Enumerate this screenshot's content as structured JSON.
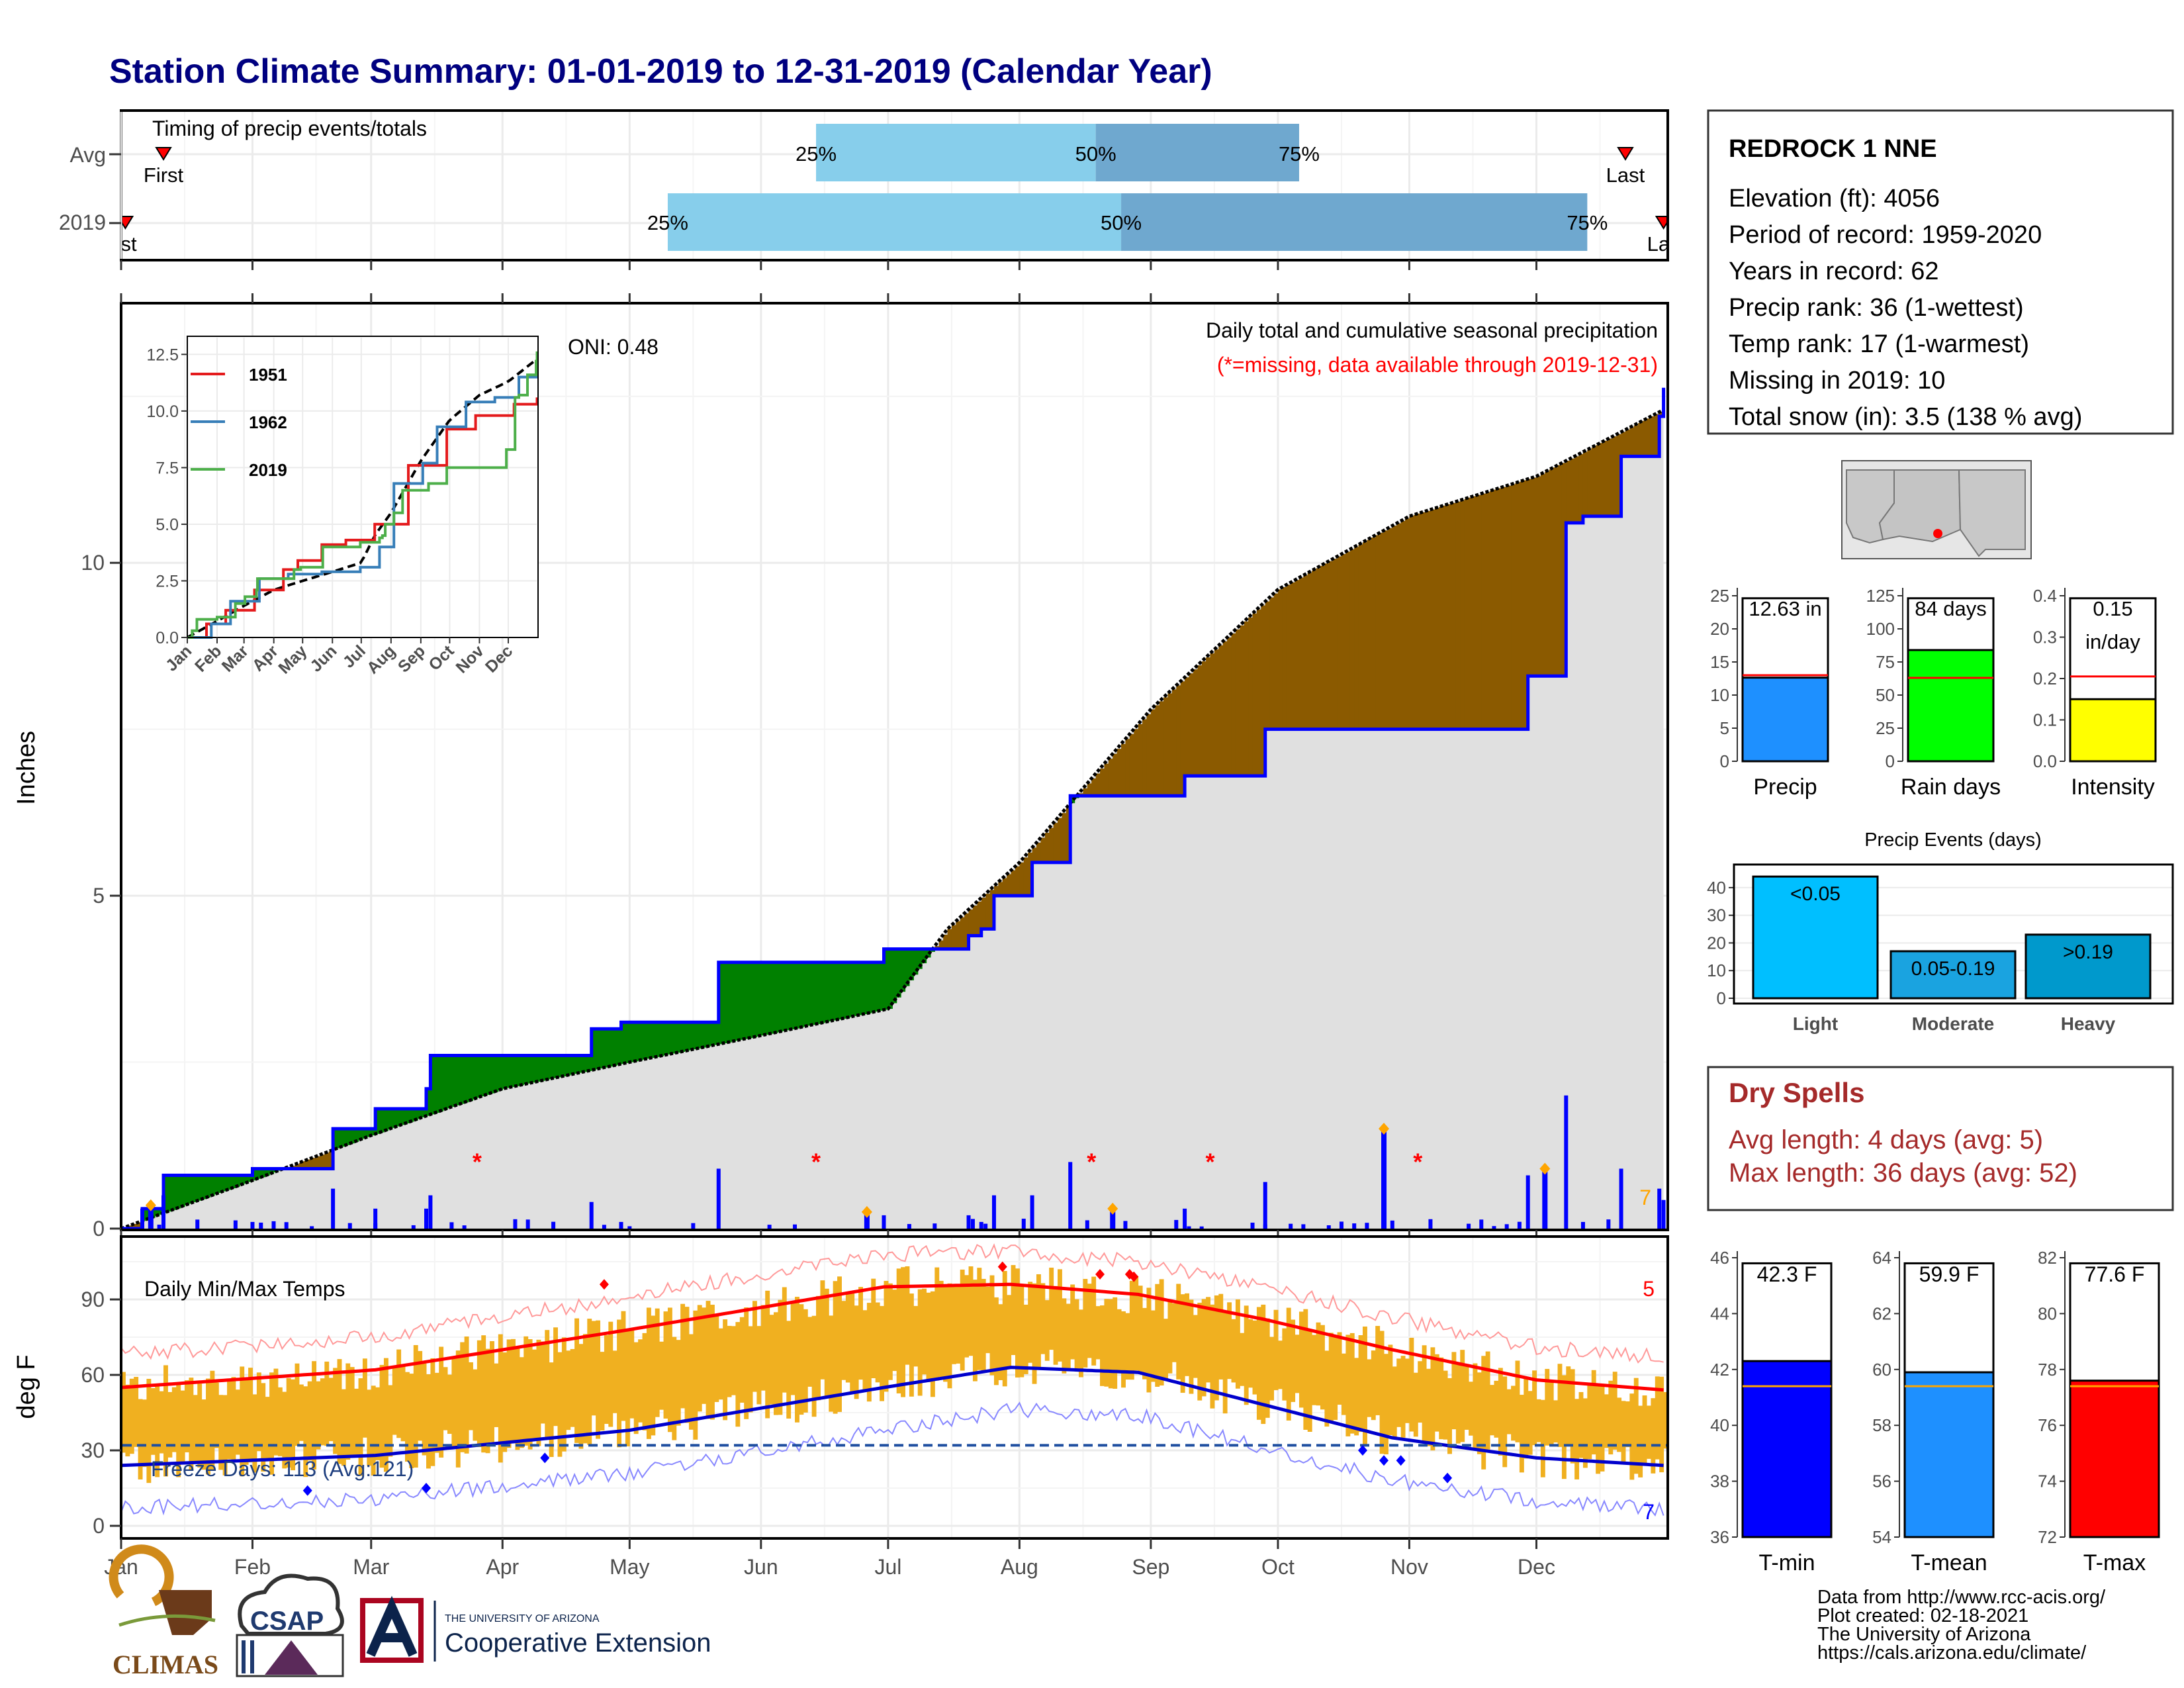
{
  "title": "Station Climate Summary: 01-01-2019 to 12-31-2019 (Calendar Year)",
  "months": [
    "Jan",
    "Feb",
    "Mar",
    "Apr",
    "May",
    "Jun",
    "Jul",
    "Aug",
    "Sep",
    "Oct",
    "Nov",
    "Dec"
  ],
  "colors": {
    "title": "#000080",
    "precip_bar": "#0000ff",
    "above_fill": "#008000",
    "below_fill": "#8b5a00",
    "normal_fill": "#e0e0e0",
    "temp_bar": "#f0b020",
    "tmax": "#ff0000",
    "tmin": "#0000cc",
    "timing_light": "#87ceeb",
    "timing_dark": "#6fa8cf",
    "dry_spells": "#a52a2a"
  },
  "timing": {
    "label": "Timing of precip events/totals",
    "rows": [
      {
        "name": "Avg",
        "first_day": 10,
        "q25": 164,
        "q50": 230,
        "q75": 278,
        "last_day": 355
      },
      {
        "name": "2019",
        "first_day": 1,
        "q25": 129,
        "q50": 236,
        "q75": 346,
        "last_day": 364
      }
    ],
    "labels": {
      "first": "First",
      "first_2019": "rst",
      "last": "Last",
      "last_2019": "Las",
      "p25": "25%",
      "p50": "50%",
      "p75": "75%"
    }
  },
  "precip_panel": {
    "ylabel": "Inches",
    "yticks": [
      "0",
      "5",
      "10"
    ],
    "heading": "Daily total and cumulative seasonal precipitation",
    "missing_note": "(*=missing, data available through 2019-12-31)",
    "oni": "ONI: 0.48",
    "corner_count": "7"
  },
  "inset": {
    "yticks": [
      "0.0",
      "2.5",
      "5.0",
      "7.5",
      "10.0",
      "12.5"
    ],
    "xticks": [
      "Jan",
      "Feb",
      "Mar",
      "Apr",
      "May",
      "Jun",
      "Jul",
      "Aug",
      "Sep",
      "Oct",
      "Nov",
      "Dec"
    ],
    "legend": [
      "1951",
      "1962",
      "2019"
    ]
  },
  "temp_panel": {
    "label": "Daily Min/Max Temps",
    "ylabel": "deg F",
    "yticks": [
      "0",
      "30",
      "60",
      "90"
    ],
    "freeze": "Freeze Days: 113 (Avg:121)",
    "count_hot": "5",
    "count_cold": "7"
  },
  "station": {
    "name": "REDROCK 1 NNE",
    "lines": [
      "Elevation (ft): 4056",
      "Period of record: 1959-2020",
      "Years in record: 62",
      "Precip rank: 36 (1-wettest)",
      "Temp rank: 17 (1-warmest)",
      "Missing in 2019: 10",
      "Total snow (in): 3.5 (138 % avg)"
    ]
  },
  "mini_precip": [
    {
      "label": "Precip",
      "value_text": "12.63 in",
      "value": 12.63,
      "avg": 13.0,
      "max": 25,
      "ticks": [
        "0",
        "5",
        "10",
        "15",
        "20",
        "25"
      ],
      "color": "#1e90ff"
    },
    {
      "label": "Rain days",
      "value_text": "84 days",
      "value": 84,
      "avg": 63,
      "max": 125,
      "ticks": [
        "0",
        "25",
        "50",
        "75",
        "100",
        "125"
      ],
      "color": "#00ff00"
    },
    {
      "label": "Intensity",
      "value_text": "0.15",
      "value_text2": "in/day",
      "value": 0.15,
      "avg": 0.205,
      "max": 0.4,
      "ticks": [
        "0.0",
        "0.1",
        "0.2",
        "0.3",
        "0.4"
      ],
      "color": "#ffff00"
    }
  ],
  "events": {
    "title": "Precip Events (days)",
    "ticks": [
      "0",
      "10",
      "20",
      "30",
      "40"
    ],
    "bars": [
      {
        "name": "Light",
        "label": "<0.05",
        "value": 44,
        "color": "#00bfff"
      },
      {
        "name": "Moderate",
        "label": "0.05-0.19",
        "value": 17,
        "color": "#1aa3e0"
      },
      {
        "name": "Heavy",
        "label": ">0.19",
        "value": 23,
        "color": "#0099cc"
      }
    ]
  },
  "dry_spells": {
    "title": "Dry Spells",
    "avg": "Avg length: 4 days (avg: 5)",
    "max": "Max length: 36 days (avg: 52)"
  },
  "temps_summary": [
    {
      "label": "T-min",
      "value_text": "42.3 F",
      "value": 42.3,
      "avg": 41.4,
      "min": 36,
      "max": 46,
      "ticks": [
        "36",
        "38",
        "40",
        "42",
        "44",
        "46"
      ],
      "color": "#0000ff"
    },
    {
      "label": "T-mean",
      "value_text": "59.9 F",
      "value": 59.9,
      "avg": 59.4,
      "min": 54,
      "max": 64,
      "ticks": [
        "54",
        "56",
        "58",
        "60",
        "62",
        "64"
      ],
      "color": "#1e90ff"
    },
    {
      "label": "T-max",
      "value_text": "77.6 F",
      "value": 77.6,
      "avg": 77.4,
      "min": 72,
      "max": 82,
      "ticks": [
        "72",
        "74",
        "76",
        "78",
        "80",
        "82"
      ],
      "color": "#ff0000"
    }
  ],
  "logos": {
    "climas": "CLIMAS",
    "csap": "CSAP",
    "ua_small": "THE UNIVERSITY OF ARIZONA",
    "ua_big": "Cooperative Extension"
  },
  "credits": [
    "Data from http://www.rcc-acis.org/",
    "Plot created: 02-18-2021",
    "The University of Arizona",
    "https://cals.arizona.edu/climate/"
  ],
  "chart_data": {
    "type": "area",
    "title": "Daily total and cumulative seasonal precipitation",
    "ylabel": "Inches",
    "ylim": [
      0,
      13.9
    ],
    "cumulative_observed_2019": [
      [
        0,
        0
      ],
      [
        5,
        0.3
      ],
      [
        10,
        0.8
      ],
      [
        31,
        0.9
      ],
      [
        50,
        1.5
      ],
      [
        60,
        1.8
      ],
      [
        72,
        2.1
      ],
      [
        73,
        2.6
      ],
      [
        110,
        2.6
      ],
      [
        111,
        3.0
      ],
      [
        118,
        3.1
      ],
      [
        140,
        3.1
      ],
      [
        141,
        4.0
      ],
      [
        165,
        4.0
      ],
      [
        180,
        4.2
      ],
      [
        200,
        4.4
      ],
      [
        203,
        4.5
      ],
      [
        206,
        5.0
      ],
      [
        215,
        5.5
      ],
      [
        224,
        6.5
      ],
      [
        251,
        6.8
      ],
      [
        270,
        7.5
      ],
      [
        330,
        7.5
      ],
      [
        332,
        8.3
      ],
      [
        338,
        8.3
      ],
      [
        341,
        10.6
      ],
      [
        345,
        10.7
      ],
      [
        354,
        11.6
      ],
      [
        363,
        12.2
      ],
      [
        364,
        12.63
      ]
    ],
    "cumulative_normal": [
      [
        0,
        0
      ],
      [
        30,
        0.7
      ],
      [
        59,
        1.4
      ],
      [
        90,
        2.1
      ],
      [
        120,
        2.5
      ],
      [
        151,
        2.9
      ],
      [
        181,
        3.3
      ],
      [
        195,
        4.5
      ],
      [
        212,
        5.5
      ],
      [
        243,
        7.8
      ],
      [
        273,
        9.6
      ],
      [
        304,
        10.7
      ],
      [
        334,
        11.3
      ],
      [
        364,
        12.3
      ]
    ],
    "daily_precip_notable": [
      [
        7,
        0.35
      ],
      [
        176,
        0.25
      ],
      [
        234,
        0.3
      ],
      [
        298,
        1.5
      ],
      [
        336,
        0.9
      ]
    ],
    "temperature": {
      "ylabel": "deg F",
      "ylim": [
        -5,
        115
      ],
      "normal_max": [
        [
          0,
          55
        ],
        [
          60,
          62
        ],
        [
          120,
          78
        ],
        [
          180,
          95
        ],
        [
          210,
          96
        ],
        [
          240,
          92
        ],
        [
          270,
          82
        ],
        [
          300,
          70
        ],
        [
          334,
          58
        ],
        [
          364,
          54
        ]
      ],
      "normal_min": [
        [
          0,
          24
        ],
        [
          60,
          28
        ],
        [
          120,
          38
        ],
        [
          180,
          55
        ],
        [
          210,
          63
        ],
        [
          240,
          61
        ],
        [
          270,
          48
        ],
        [
          300,
          35
        ],
        [
          334,
          27
        ],
        [
          364,
          24
        ]
      ],
      "freeze_line": 32
    }
  }
}
